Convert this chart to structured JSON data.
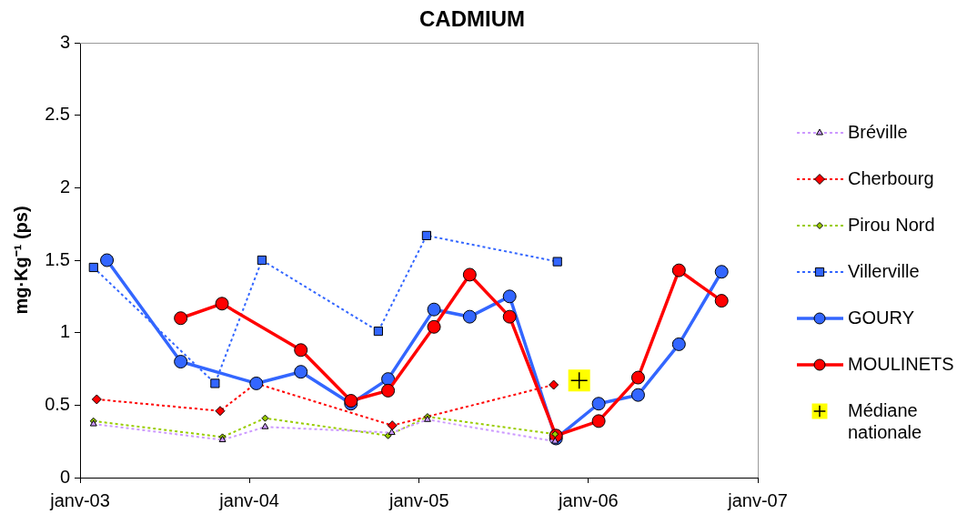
{
  "chart_data": {
    "type": "line",
    "title": "CADMIUM",
    "ylabel": "mg·Kg⁻¹ (ps)",
    "xlim": [
      "2003-01-01",
      "2007-01-01"
    ],
    "xticks": [
      {
        "value": "2003-01-01",
        "label": "janv-03"
      },
      {
        "value": "2004-01-01",
        "label": "janv-04"
      },
      {
        "value": "2005-01-01",
        "label": "janv-05"
      },
      {
        "value": "2006-01-01",
        "label": "janv-06"
      },
      {
        "value": "2007-01-01",
        "label": "janv-07"
      }
    ],
    "ylim": [
      0,
      3
    ],
    "yticks": [
      0,
      0.5,
      1,
      1.5,
      2,
      2.5,
      3
    ],
    "grid": false,
    "legend": "right",
    "series": [
      {
        "name": "Bréville",
        "color": "#cc99ff",
        "marker": "triangle",
        "line_style": "dotted",
        "x": [
          "2003-01-30",
          "2003-11-04",
          "2004-02-04",
          "2004-11-03",
          "2005-01-19",
          "2005-10-21"
        ],
        "values": [
          0.37,
          0.26,
          0.35,
          0.31,
          0.4,
          0.25
        ]
      },
      {
        "name": "Cherbourg",
        "color": "#ff0000",
        "marker": "diamond",
        "line_style": "dotted",
        "x": [
          "2003-02-06",
          "2003-10-30",
          "2004-01-15",
          "2004-11-04",
          "2005-10-18"
        ],
        "values": [
          0.54,
          0.46,
          0.65,
          0.36,
          0.64
        ]
      },
      {
        "name": "Pirou Nord",
        "color": "#99cc00",
        "marker": "diamond",
        "line_style": "dotted",
        "x": [
          "2003-01-30",
          "2003-11-04",
          "2004-02-04",
          "2004-10-26",
          "2005-01-19",
          "2005-10-21"
        ],
        "values": [
          0.39,
          0.28,
          0.41,
          0.29,
          0.42,
          0.3
        ]
      },
      {
        "name": "Villerville",
        "color": "#3366ff",
        "marker": "square",
        "line_style": "dotted",
        "x": [
          "2003-01-30",
          "2003-10-19",
          "2004-01-28",
          "2004-10-05",
          "2005-01-17",
          "2005-10-26"
        ],
        "values": [
          1.45,
          0.65,
          1.5,
          1.01,
          1.67,
          1.49
        ]
      },
      {
        "name": "GOURY",
        "color": "#3366ff",
        "marker": "circle",
        "line_style": "solid",
        "x": [
          "2003-02-28",
          "2003-08-06",
          "2004-01-16",
          "2004-04-21",
          "2004-08-07",
          "2004-10-26",
          "2005-02-02",
          "2005-04-20",
          "2005-07-15",
          "2005-10-23",
          "2006-01-23",
          "2006-04-18",
          "2006-07-15",
          "2006-10-15"
        ],
        "values": [
          1.5,
          0.8,
          0.65,
          0.73,
          0.51,
          0.68,
          1.16,
          1.11,
          1.25,
          0.27,
          0.51,
          0.57,
          0.92,
          1.42
        ]
      },
      {
        "name": "MOULINETS",
        "color": "#ff0000",
        "marker": "circle",
        "line_style": "solid",
        "x": [
          "2003-08-06",
          "2003-11-03",
          "2004-04-21",
          "2004-08-07",
          "2004-10-26",
          "2005-02-02",
          "2005-04-20",
          "2005-07-15",
          "2005-10-23",
          "2006-01-23",
          "2006-04-18",
          "2006-07-15",
          "2006-10-15"
        ],
        "values": [
          1.1,
          1.2,
          0.88,
          0.53,
          0.6,
          1.04,
          1.4,
          1.11,
          0.29,
          0.39,
          0.69,
          1.43,
          1.22
        ]
      },
      {
        "name": "Médiane nationale",
        "color": "#ffff00",
        "type": "scatter",
        "marker": "square",
        "x": [
          "2005-12-12"
        ],
        "values": [
          0.67
        ]
      }
    ]
  }
}
